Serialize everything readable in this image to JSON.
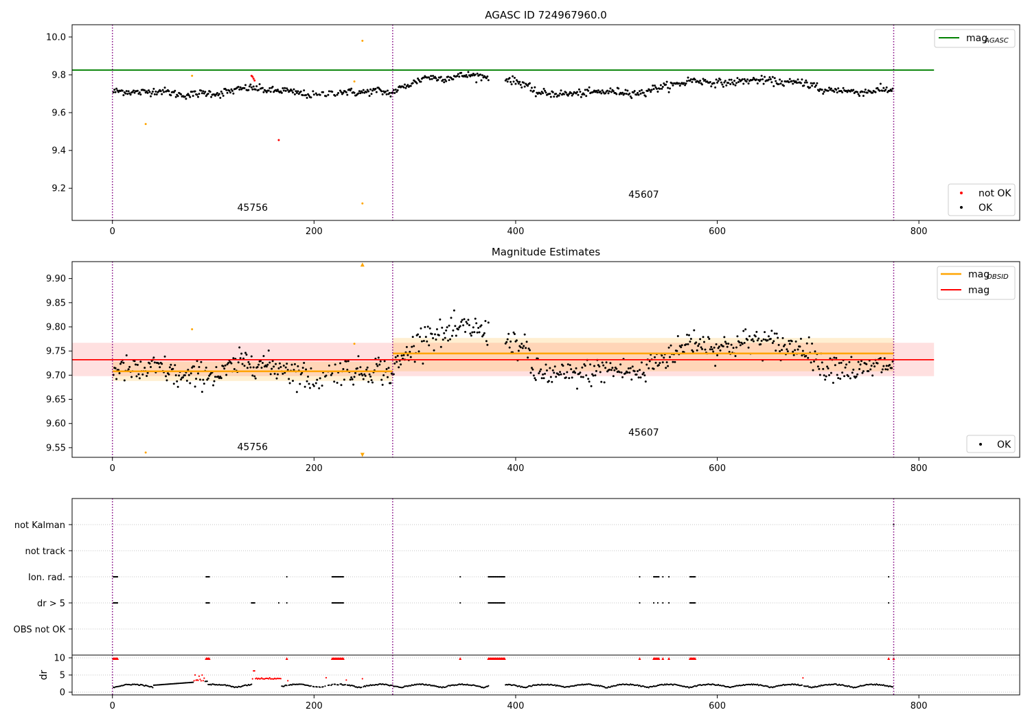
{
  "chart_data": [
    {
      "type": "scatter",
      "title": "AGASC ID 724967960.0",
      "xlim": [
        -40,
        900
      ],
      "ylim": [
        9.03,
        10.065
      ],
      "xticks": [
        0,
        200,
        400,
        600,
        800
      ],
      "yticks": [
        9.2,
        9.4,
        9.6,
        9.8,
        10.0
      ],
      "ytick_labels": [
        "9.2",
        "9.4",
        "9.6",
        "9.8",
        "10.0"
      ],
      "obs_boundaries": [
        0,
        278,
        775
      ],
      "agasc_mag": 9.825,
      "agasc_line_xrange": [
        -40,
        815
      ],
      "obsid_labels": [
        {
          "text": "45756",
          "x": 139,
          "y": 9.08
        },
        {
          "text": "45607",
          "x": 527,
          "y": 9.15
        }
      ],
      "outliers_orange": [
        [
          33,
          9.54
        ],
        [
          79,
          9.795
        ],
        [
          240,
          9.765
        ],
        [
          248,
          9.98
        ],
        [
          248,
          9.12
        ]
      ],
      "outliers_red": [
        [
          138,
          9.795
        ],
        [
          139,
          9.79
        ],
        [
          140,
          9.78
        ],
        [
          141,
          9.77
        ],
        [
          165,
          9.455
        ]
      ],
      "legend_top": {
        "label": "mag",
        "sub": "AGASC",
        "color": "#008000"
      },
      "legend_bottom": [
        {
          "label": "not OK",
          "color": "#ff0000"
        },
        {
          "label": "OK",
          "color": "#000000"
        }
      ]
    },
    {
      "type": "scatter",
      "title": "Magnitude Estimates",
      "xlim": [
        -40,
        900
      ],
      "ylim": [
        9.53,
        9.935
      ],
      "xticks": [
        0,
        200,
        400,
        600,
        800
      ],
      "yticks": [
        9.55,
        9.6,
        9.65,
        9.7,
        9.75,
        9.8,
        9.85,
        9.9
      ],
      "ytick_labels": [
        "9.55",
        "9.60",
        "9.65",
        "9.70",
        "9.75",
        "9.80",
        "9.85",
        "9.90"
      ],
      "obs_boundaries": [
        0,
        278,
        775
      ],
      "mag": 9.732,
      "mag_band": [
        9.698,
        9.767
      ],
      "mag_xrange": [
        -40,
        815
      ],
      "obsid_segments": [
        {
          "x0": 0,
          "x1": 278,
          "mag": 9.708,
          "band": [
            9.688,
            9.728
          ]
        },
        {
          "x0": 278,
          "x1": 775,
          "mag": 9.745,
          "band": [
            9.708,
            9.777
          ]
        }
      ],
      "obsid_labels": [
        {
          "text": "45756",
          "x": 139,
          "y": 9.545
        },
        {
          "text": "45607",
          "x": 527,
          "y": 9.575
        }
      ],
      "outliers_orange": [
        [
          33,
          9.54
        ],
        [
          79,
          9.795
        ],
        [
          240,
          9.765
        ]
      ],
      "clipped_markers": [
        [
          248,
          9.929,
          "up"
        ],
        [
          248,
          9.535,
          "down"
        ]
      ],
      "legend_top": [
        {
          "label": "mag",
          "sub": "OBSID",
          "color": "#ffa500"
        },
        {
          "label": "mag",
          "sub": "",
          "color": "#ff0000"
        }
      ],
      "legend_bottom": [
        {
          "label": "OK",
          "color": "#000000"
        }
      ]
    },
    {
      "type": "scatter",
      "title": "",
      "xlim": [
        -40,
        900
      ],
      "xticks": [
        0,
        200,
        400,
        600,
        800
      ],
      "obs_boundaries": [
        0,
        278,
        775
      ],
      "flag_rows": [
        "not Kalman",
        "not track",
        "Ion. rad.",
        "dr > 5",
        "OBS not OK"
      ],
      "flag_events": {
        "not Kalman": [
          775
        ],
        "not track": [],
        "Ion. rad.": [
          [
            1,
            5
          ],
          [
            93,
            96
          ],
          173,
          [
            218,
            229
          ],
          345,
          [
            373,
            389
          ],
          523,
          [
            537,
            542
          ],
          546,
          552,
          [
            573,
            578
          ],
          770
        ],
        "dr > 5": [
          [
            1,
            5
          ],
          [
            93,
            96
          ],
          [
            138,
            141
          ],
          165,
          173,
          [
            218,
            229
          ],
          345,
          [
            373,
            389
          ],
          523,
          537,
          541,
          546,
          552,
          [
            573,
            578
          ],
          770
        ],
        "OBS not OK": []
      },
      "dr_ylim": [
        -0.8,
        10.8
      ],
      "dr_yticks": [
        0,
        5,
        10
      ],
      "dr_ylabel": "dr",
      "dr_high_marks": [
        [
          1,
          5
        ],
        [
          93,
          96
        ],
        173,
        [
          218,
          229
        ],
        345,
        [
          373,
          389
        ],
        523,
        [
          537,
          542
        ],
        546,
        552,
        [
          573,
          578
        ],
        770,
        775
      ]
    }
  ]
}
